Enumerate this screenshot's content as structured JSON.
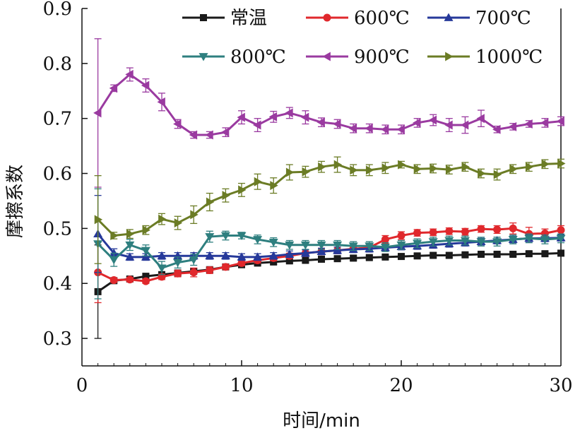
{
  "chart_data": {
    "type": "line",
    "title": "",
    "xlabel": "时间/min",
    "ylabel": "摩擦系数",
    "xlim": [
      0,
      30
    ],
    "ylim": [
      0.25,
      0.9
    ],
    "x_ticks": [
      0,
      10,
      20,
      30
    ],
    "x_tick_labels": [
      "0",
      "10",
      "20",
      "30"
    ],
    "y_ticks": [
      0.3,
      0.4,
      0.5,
      0.6,
      0.7,
      0.8,
      0.9
    ],
    "y_tick_labels": [
      "0.3",
      "0.4",
      "0.5",
      "0.6",
      "0.7",
      "0.8",
      "0.9"
    ],
    "grid": false,
    "legend_position": "top-right",
    "x": [
      1,
      2,
      3,
      4,
      5,
      6,
      7,
      8,
      9,
      10,
      11,
      12,
      13,
      14,
      15,
      16,
      17,
      18,
      19,
      20,
      21,
      22,
      23,
      24,
      25,
      26,
      27,
      28,
      29,
      30
    ],
    "series": [
      {
        "name": "常温",
        "color": "#1a1a1a",
        "marker": "square",
        "values": [
          0.385,
          0.405,
          0.408,
          0.413,
          0.416,
          0.419,
          0.422,
          0.425,
          0.43,
          0.434,
          0.437,
          0.439,
          0.441,
          0.442,
          0.444,
          0.445,
          0.446,
          0.447,
          0.448,
          0.449,
          0.45,
          0.451,
          0.451,
          0.452,
          0.453,
          0.453,
          0.453,
          0.454,
          0.454,
          0.455
        ],
        "errors": [
          0.085,
          0.004,
          0.004,
          0.004,
          0.004,
          0.004,
          0.004,
          0.004,
          0.004,
          0.004,
          0.004,
          0.004,
          0.004,
          0.004,
          0.004,
          0.004,
          0.004,
          0.004,
          0.004,
          0.004,
          0.004,
          0.004,
          0.004,
          0.004,
          0.004,
          0.004,
          0.004,
          0.004,
          0.004,
          0.004
        ]
      },
      {
        "name": "600℃",
        "color": "#e0282c",
        "marker": "circle",
        "values": [
          0.42,
          0.406,
          0.407,
          0.404,
          0.412,
          0.418,
          0.42,
          0.424,
          0.43,
          0.437,
          0.442,
          0.446,
          0.45,
          0.455,
          0.458,
          0.46,
          0.463,
          0.465,
          0.48,
          0.487,
          0.492,
          0.493,
          0.495,
          0.494,
          0.499,
          0.498,
          0.5,
          0.49,
          0.491,
          0.497
        ],
        "errors": [
          0.055,
          0.004,
          0.004,
          0.004,
          0.005,
          0.006,
          0.008,
          0.006,
          0.005,
          0.005,
          0.005,
          0.005,
          0.005,
          0.006,
          0.006,
          0.006,
          0.006,
          0.006,
          0.007,
          0.007,
          0.006,
          0.006,
          0.006,
          0.006,
          0.006,
          0.007,
          0.01,
          0.012,
          0.008,
          0.008
        ]
      },
      {
        "name": "700℃",
        "color": "#26399a",
        "marker": "triangle-up",
        "values": [
          0.49,
          0.455,
          0.448,
          0.448,
          0.45,
          0.45,
          0.45,
          0.45,
          0.45,
          0.448,
          0.448,
          0.45,
          0.453,
          0.455,
          0.458,
          0.46,
          0.462,
          0.463,
          0.465,
          0.467,
          0.468,
          0.47,
          0.472,
          0.474,
          0.476,
          0.478,
          0.48,
          0.482,
          0.482,
          0.483
        ],
        "errors": [
          0.07,
          0.008,
          0.006,
          0.006,
          0.006,
          0.006,
          0.006,
          0.006,
          0.006,
          0.006,
          0.006,
          0.006,
          0.006,
          0.006,
          0.006,
          0.006,
          0.006,
          0.006,
          0.006,
          0.006,
          0.006,
          0.006,
          0.006,
          0.006,
          0.006,
          0.006,
          0.006,
          0.006,
          0.006,
          0.006
        ]
      },
      {
        "name": "800℃",
        "color": "#2e7f7f",
        "marker": "triangle-down",
        "values": [
          0.472,
          0.443,
          0.47,
          0.46,
          0.428,
          0.438,
          0.443,
          0.485,
          0.487,
          0.487,
          0.48,
          0.475,
          0.47,
          0.47,
          0.47,
          0.47,
          0.468,
          0.468,
          0.466,
          0.47,
          0.473,
          0.476,
          0.478,
          0.478,
          0.476,
          0.476,
          0.48,
          0.482,
          0.48,
          0.482
        ],
        "errors": [
          0.1,
          0.012,
          0.01,
          0.01,
          0.012,
          0.01,
          0.01,
          0.01,
          0.008,
          0.006,
          0.008,
          0.008,
          0.008,
          0.008,
          0.008,
          0.008,
          0.008,
          0.008,
          0.008,
          0.008,
          0.008,
          0.008,
          0.008,
          0.008,
          0.008,
          0.008,
          0.008,
          0.008,
          0.008,
          0.008
        ]
      },
      {
        "name": "900℃",
        "color": "#9a3aa0",
        "marker": "triangle-left",
        "values": [
          0.71,
          0.755,
          0.78,
          0.76,
          0.73,
          0.69,
          0.67,
          0.67,
          0.675,
          0.702,
          0.688,
          0.703,
          0.71,
          0.702,
          0.693,
          0.69,
          0.682,
          0.682,
          0.68,
          0.68,
          0.692,
          0.697,
          0.688,
          0.688,
          0.7,
          0.68,
          0.685,
          0.69,
          0.692,
          0.695
        ],
        "errors": [
          0.135,
          0.006,
          0.012,
          0.012,
          0.016,
          0.008,
          0.006,
          0.006,
          0.008,
          0.012,
          0.012,
          0.01,
          0.01,
          0.012,
          0.008,
          0.008,
          0.008,
          0.008,
          0.008,
          0.008,
          0.008,
          0.01,
          0.012,
          0.015,
          0.015,
          0.006,
          0.006,
          0.006,
          0.008,
          0.008
        ]
      },
      {
        "name": "1000℃",
        "color": "#6b7c25",
        "marker": "triangle-right",
        "values": [
          0.516,
          0.487,
          0.49,
          0.497,
          0.517,
          0.51,
          0.525,
          0.548,
          0.56,
          0.57,
          0.585,
          0.578,
          0.602,
          0.603,
          0.612,
          0.616,
          0.606,
          0.606,
          0.61,
          0.616,
          0.608,
          0.609,
          0.607,
          0.612,
          0.6,
          0.598,
          0.608,
          0.612,
          0.617,
          0.618
        ],
        "errors": [
          0.08,
          0.006,
          0.008,
          0.008,
          0.01,
          0.012,
          0.016,
          0.016,
          0.012,
          0.012,
          0.014,
          0.014,
          0.014,
          0.01,
          0.01,
          0.014,
          0.01,
          0.01,
          0.01,
          0.006,
          0.008,
          0.008,
          0.008,
          0.008,
          0.008,
          0.01,
          0.008,
          0.008,
          0.008,
          0.008
        ]
      }
    ]
  }
}
